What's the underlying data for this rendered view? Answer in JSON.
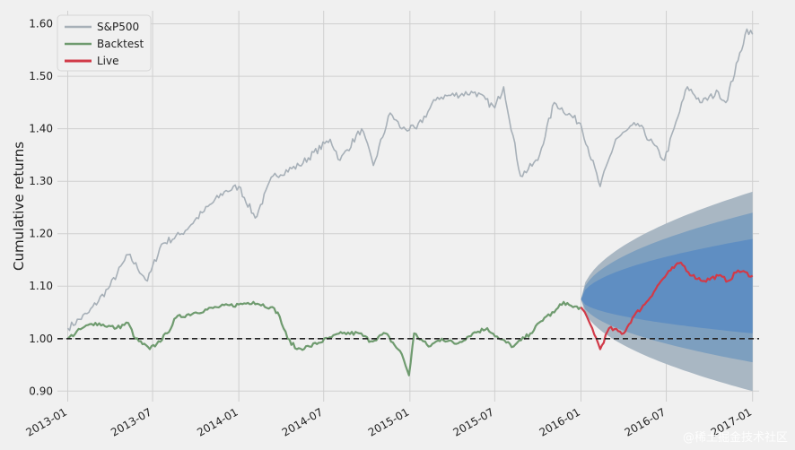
{
  "chart_data": {
    "type": "line",
    "ylabel": "Cumulative returns",
    "xlabel": "",
    "title": "",
    "ylim": [
      0.88,
      1.625
    ],
    "xlim": [
      "2012-12-10",
      "2017-01-15"
    ],
    "y_ticks": [
      0.9,
      1.0,
      1.1,
      1.2,
      1.3,
      1.4,
      1.5,
      1.6
    ],
    "y_tick_labels": [
      "0.90",
      "1.00",
      "1.10",
      "1.20",
      "1.30",
      "1.40",
      "1.50",
      "1.60"
    ],
    "x_ticks": [
      "2013-01-01",
      "2013-07-01",
      "2014-01-01",
      "2014-07-01",
      "2015-01-01",
      "2015-07-01",
      "2016-01-01",
      "2016-07-01",
      "2017-01-01"
    ],
    "x_tick_labels": [
      "2013-01",
      "2013-07",
      "2014-01",
      "2014-07",
      "2015-01",
      "2015-07",
      "2016-01",
      "2016-07",
      "2017-01"
    ],
    "grid": true,
    "legend_position": "top-left",
    "reference_line": {
      "y": 1.0,
      "style": "dashed",
      "color": "#222222"
    },
    "series": [
      {
        "name": "S&P500",
        "color": "#a7b0b8",
        "points": [
          [
            "2013-01-01",
            1.02
          ],
          [
            "2013-02-15",
            1.05
          ],
          [
            "2013-04-01",
            1.1
          ],
          [
            "2013-05-10",
            1.16
          ],
          [
            "2013-06-20",
            1.11
          ],
          [
            "2013-07-20",
            1.18
          ],
          [
            "2013-09-01",
            1.2
          ],
          [
            "2013-10-15",
            1.24
          ],
          [
            "2013-12-01",
            1.28
          ],
          [
            "2014-01-01",
            1.29
          ],
          [
            "2014-02-05",
            1.23
          ],
          [
            "2014-03-15",
            1.31
          ],
          [
            "2014-05-10",
            1.33
          ],
          [
            "2014-07-15",
            1.38
          ],
          [
            "2014-08-05",
            1.34
          ],
          [
            "2014-09-20",
            1.4
          ],
          [
            "2014-10-15",
            1.33
          ],
          [
            "2014-11-20",
            1.43
          ],
          [
            "2014-12-15",
            1.4
          ],
          [
            "2015-01-15",
            1.4
          ],
          [
            "2015-03-01",
            1.46
          ],
          [
            "2015-05-20",
            1.47
          ],
          [
            "2015-07-01",
            1.44
          ],
          [
            "2015-07-20",
            1.48
          ],
          [
            "2015-08-25",
            1.31
          ],
          [
            "2015-10-01",
            1.34
          ],
          [
            "2015-11-05",
            1.45
          ],
          [
            "2015-12-31",
            1.41
          ],
          [
            "2016-02-11",
            1.29
          ],
          [
            "2016-03-15",
            1.38
          ],
          [
            "2016-05-01",
            1.41
          ],
          [
            "2016-06-27",
            1.34
          ],
          [
            "2016-08-15",
            1.48
          ],
          [
            "2016-09-15",
            1.45
          ],
          [
            "2016-10-20",
            1.47
          ],
          [
            "2016-11-05",
            1.45
          ],
          [
            "2016-12-01",
            1.53
          ],
          [
            "2016-12-20",
            1.59
          ],
          [
            "2017-01-01",
            1.58
          ]
        ]
      },
      {
        "name": "Backtest",
        "color": "#6f9b6f",
        "points": [
          [
            "2013-01-01",
            1.0
          ],
          [
            "2013-02-01",
            1.02
          ],
          [
            "2013-03-01",
            1.03
          ],
          [
            "2013-04-15",
            1.02
          ],
          [
            "2013-05-10",
            1.03
          ],
          [
            "2013-05-25",
            1.0
          ],
          [
            "2013-06-25",
            0.98
          ],
          [
            "2013-07-10",
            0.99
          ],
          [
            "2013-08-01",
            1.01
          ],
          [
            "2013-08-20",
            1.04
          ],
          [
            "2013-10-01",
            1.05
          ],
          [
            "2013-11-15",
            1.06
          ],
          [
            "2014-01-01",
            1.065
          ],
          [
            "2014-02-01",
            1.07
          ],
          [
            "2014-03-10",
            1.06
          ],
          [
            "2014-03-25",
            1.05
          ],
          [
            "2014-04-15",
            1.0
          ],
          [
            "2014-05-05",
            0.98
          ],
          [
            "2014-06-01",
            0.985
          ],
          [
            "2014-07-10",
            1.0
          ],
          [
            "2014-08-10",
            1.01
          ],
          [
            "2014-09-15",
            1.01
          ],
          [
            "2014-10-10",
            0.995
          ],
          [
            "2014-11-10",
            1.01
          ],
          [
            "2014-12-15",
            0.97
          ],
          [
            "2014-12-30",
            0.93
          ],
          [
            "2015-01-10",
            1.01
          ],
          [
            "2015-02-10",
            0.985
          ],
          [
            "2015-03-10",
            1.0
          ],
          [
            "2015-04-10",
            0.99
          ],
          [
            "2015-05-15",
            1.01
          ],
          [
            "2015-06-15",
            1.02
          ],
          [
            "2015-07-10",
            1.0
          ],
          [
            "2015-08-10",
            0.985
          ],
          [
            "2015-09-15",
            1.01
          ],
          [
            "2015-10-15",
            1.04
          ],
          [
            "2015-11-05",
            1.05
          ],
          [
            "2015-11-25",
            1.07
          ],
          [
            "2015-12-15",
            1.06
          ],
          [
            "2015-12-31",
            1.06
          ]
        ]
      },
      {
        "name": "Live",
        "color": "#d13a48",
        "points": [
          [
            "2016-01-01",
            1.06
          ],
          [
            "2016-01-25",
            1.02
          ],
          [
            "2016-02-11",
            0.98
          ],
          [
            "2016-03-01",
            1.02
          ],
          [
            "2016-04-01",
            1.01
          ],
          [
            "2016-04-20",
            1.04
          ],
          [
            "2016-05-20",
            1.07
          ],
          [
            "2016-06-20",
            1.11
          ],
          [
            "2016-07-10",
            1.13
          ],
          [
            "2016-08-01",
            1.145
          ],
          [
            "2016-08-25",
            1.12
          ],
          [
            "2016-09-20",
            1.11
          ],
          [
            "2016-10-20",
            1.12
          ],
          [
            "2016-11-10",
            1.11
          ],
          [
            "2016-12-01",
            1.13
          ],
          [
            "2017-01-01",
            1.12
          ]
        ]
      }
    ],
    "cone": {
      "start_date": "2016-01-01",
      "end_date": "2017-01-01",
      "start_value": 1.075,
      "bands": [
        {
          "color": "#a9b7c3",
          "upper_end": 1.28,
          "lower_end": 0.9
        },
        {
          "color": "#7d9fbf",
          "upper_end": 1.24,
          "lower_end": 0.955
        },
        {
          "color": "#5f8ec2",
          "upper_end": 1.19,
          "lower_end": 1.01
        }
      ]
    }
  },
  "watermark": "@稀土掘金技术社区"
}
